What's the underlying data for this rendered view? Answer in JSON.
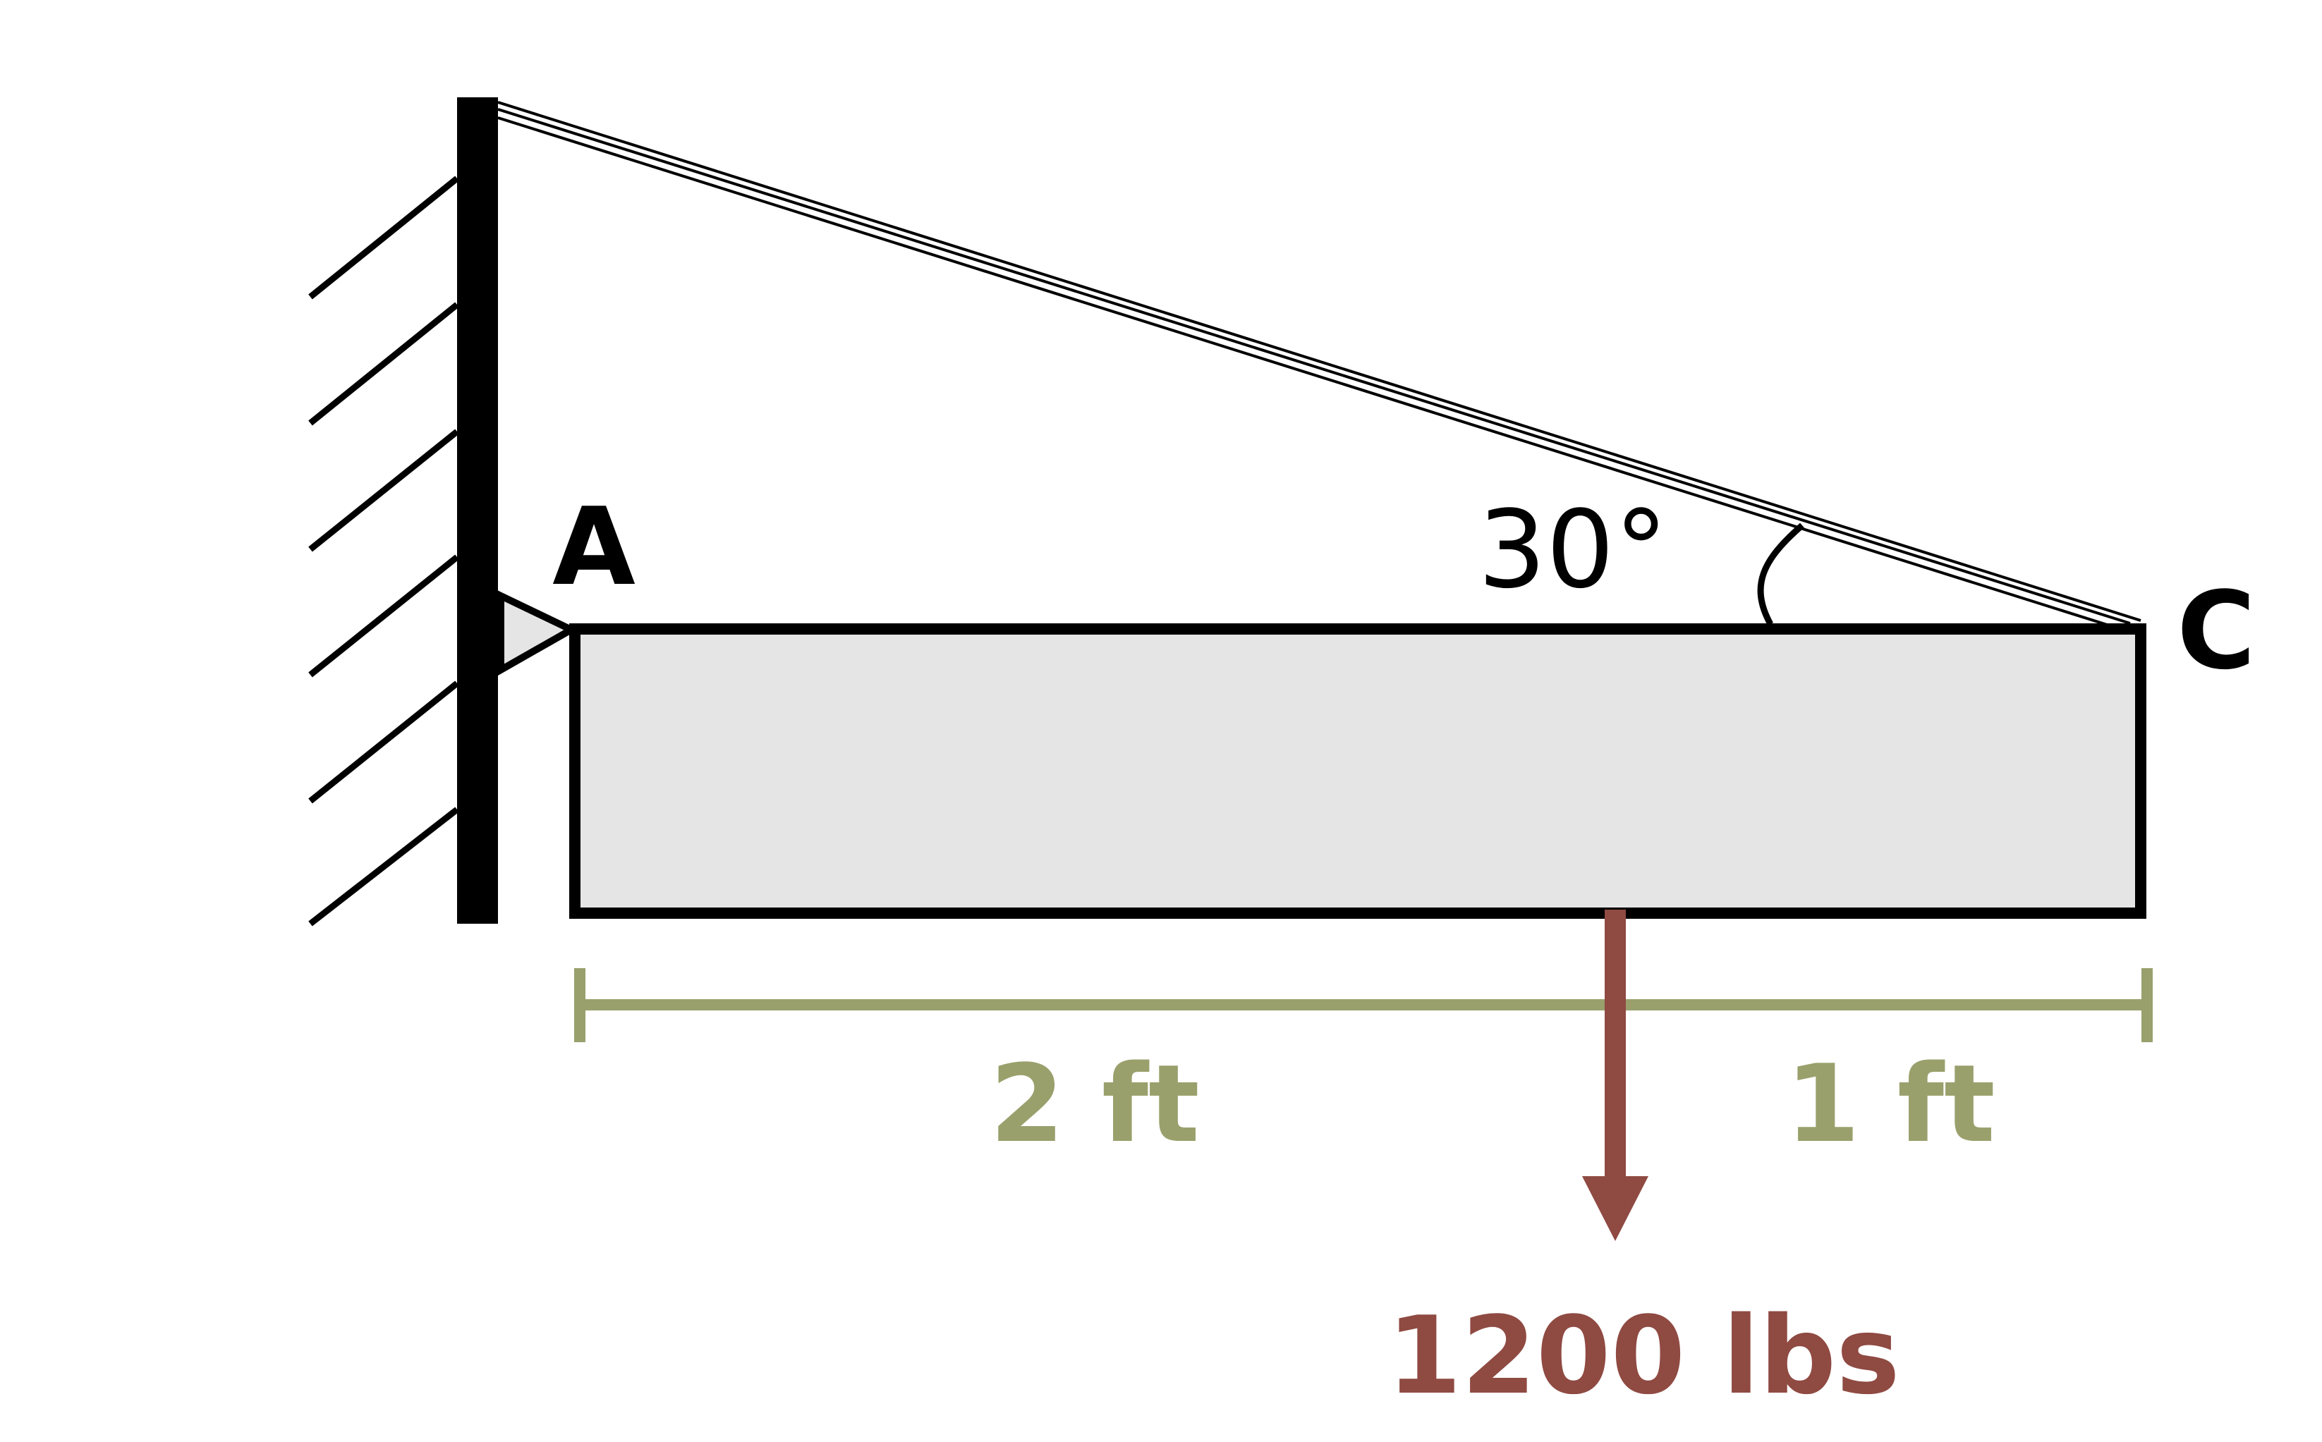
{
  "labels": {
    "point_a": "A",
    "point_c": "C",
    "angle": "30°",
    "dim_left": "2 ft",
    "dim_right": "1 ft",
    "load": "1200 lbs"
  },
  "colors": {
    "stroke": "#000000",
    "beam_fill": "#e5e5e5",
    "pin_fill": "#e5e5e5",
    "dimension": "#9aa06c",
    "load": "#8f4a42"
  },
  "icons": {
    "wall": "hatched-fixed-wall",
    "support": "triangular-pin-support",
    "cable": "double-line-cable",
    "load": "down-arrow"
  }
}
